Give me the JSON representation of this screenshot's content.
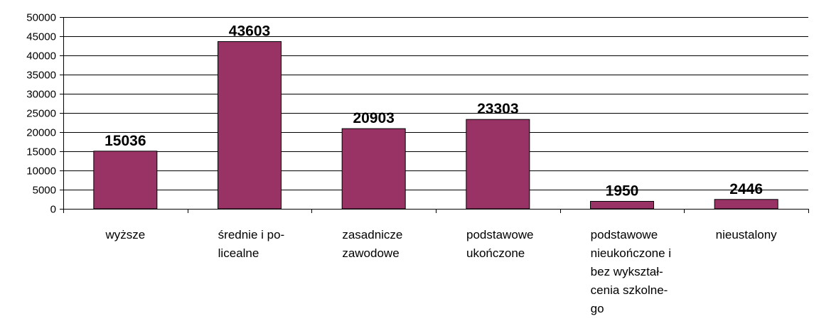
{
  "chart_data": {
    "type": "bar",
    "categories": [
      [
        "wyższe"
      ],
      [
        "średnie i po-",
        "licealne"
      ],
      [
        "zasadnicze",
        "zawodowe"
      ],
      [
        "podstawowe",
        "ukończone"
      ],
      [
        "podstawowe",
        "nieukończone i",
        "bez wykształ-",
        "cenia szkolne-",
        "go"
      ],
      [
        "nieustalony"
      ]
    ],
    "values": [
      15036,
      43603,
      20903,
      23303,
      1950,
      2446
    ],
    "data_labels": [
      "15036",
      "43603",
      "20903",
      "23303",
      "1950",
      "2446"
    ],
    "ylim": [
      0,
      50000
    ],
    "yticks": [
      0,
      5000,
      10000,
      15000,
      20000,
      25000,
      30000,
      35000,
      40000,
      45000,
      50000
    ],
    "ytick_labels": [
      "0",
      "5000",
      "10000",
      "15000",
      "20000",
      "25000",
      "30000",
      "35000",
      "40000",
      "45000",
      "50000"
    ],
    "bar_color": "#993366",
    "gridlines": true,
    "legend": false
  }
}
